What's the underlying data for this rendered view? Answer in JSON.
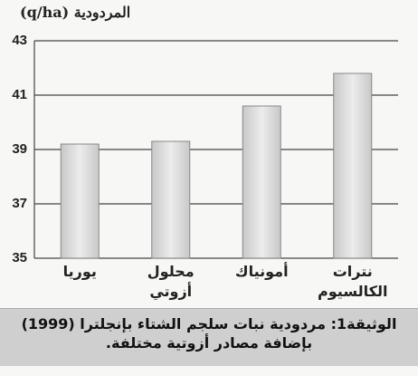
{
  "chart_data": {
    "type": "bar",
    "y_label": "المردودية (q/ha)",
    "categories": [
      "يوريا",
      "محلول أزوتي",
      "أمونياك",
      "نترات الكالسيوم"
    ],
    "values": [
      39.2,
      39.3,
      40.6,
      41.8
    ],
    "color": "#d9d9d9",
    "ylim": [
      35,
      43
    ],
    "yticks": [
      35,
      37,
      39,
      41,
      43
    ],
    "grid": true
  },
  "caption": {
    "line1": "الوثيقة1: مردودية نبات سلجم الشتاء بإنجلترا (1999)",
    "line2": "بإضافة مصادر أزوتية مختلفة."
  }
}
